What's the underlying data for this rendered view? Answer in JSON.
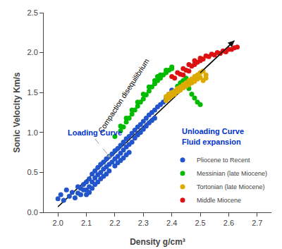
{
  "chart_data": {
    "type": "scatter",
    "title": "",
    "xlabel": "Density g/cm³",
    "ylabel": "Sonic Velocity Km/s",
    "xlim": [
      1.95,
      2.75
    ],
    "ylim": [
      0,
      2.5
    ],
    "xticks": [
      {
        "value": 2.0,
        "label": "2.0"
      },
      {
        "value": 2.1,
        "label": "2.1"
      },
      {
        "value": 2.2,
        "label": "2.2"
      },
      {
        "value": 2.3,
        "label": "2.3"
      },
      {
        "value": 2.4,
        "label": "2.4"
      },
      {
        "value": 2.5,
        "label": "2.5"
      },
      {
        "value": 2.6,
        "label": "2.6"
      },
      {
        "value": 2.7,
        "label": "2.7"
      }
    ],
    "yticks": [
      {
        "value": 0,
        "label": "0.0"
      },
      {
        "value": 0.5,
        "label": "0.5"
      },
      {
        "value": 1.0,
        "label": "1.0"
      },
      {
        "value": 1.5,
        "label": "1.5"
      },
      {
        "value": 2.0,
        "label": "2.0"
      },
      {
        "value": 2.5,
        "label": "2.5"
      }
    ],
    "grid": false,
    "legend": "lower right",
    "marker": "circle",
    "series": [
      {
        "name": "Pliocene to Recent",
        "color": "#2255cc",
        "x": [
          2.0,
          2.01,
          2.02,
          2.03,
          2.04,
          2.05,
          2.06,
          2.07,
          2.07,
          2.08,
          2.08,
          2.09,
          2.09,
          2.1,
          2.1,
          2.1,
          2.11,
          2.11,
          2.11,
          2.12,
          2.12,
          2.12,
          2.13,
          2.13,
          2.13,
          2.14,
          2.14,
          2.14,
          2.15,
          2.15,
          2.15,
          2.16,
          2.16,
          2.16,
          2.17,
          2.17,
          2.17,
          2.18,
          2.18,
          2.18,
          2.19,
          2.19,
          2.2,
          2.2,
          2.2,
          2.21,
          2.21,
          2.21,
          2.22,
          2.22,
          2.22,
          2.23,
          2.23,
          2.23,
          2.24,
          2.24,
          2.24,
          2.25,
          2.25,
          2.25,
          2.26,
          2.26,
          2.27,
          2.27,
          2.28,
          2.28,
          2.29,
          2.29,
          2.3,
          2.3,
          2.31,
          2.31,
          2.32,
          2.32,
          2.33,
          2.33,
          2.34,
          2.34,
          2.35,
          2.36,
          2.37,
          2.38,
          2.39,
          2.4
        ],
        "y": [
          0.17,
          0.22,
          0.15,
          0.28,
          0.2,
          0.25,
          0.18,
          0.32,
          0.24,
          0.3,
          0.22,
          0.35,
          0.28,
          0.38,
          0.28,
          0.22,
          0.42,
          0.32,
          0.25,
          0.48,
          0.38,
          0.3,
          0.52,
          0.43,
          0.35,
          0.56,
          0.47,
          0.38,
          0.6,
          0.5,
          0.42,
          0.63,
          0.54,
          0.45,
          0.67,
          0.57,
          0.48,
          0.7,
          0.6,
          0.52,
          0.73,
          0.63,
          0.77,
          0.67,
          0.58,
          0.8,
          0.7,
          0.62,
          0.84,
          0.74,
          0.65,
          0.88,
          0.78,
          0.68,
          0.92,
          0.82,
          0.72,
          0.95,
          0.85,
          0.75,
          0.99,
          0.88,
          1.03,
          0.93,
          1.07,
          0.97,
          1.1,
          1.0,
          1.14,
          1.04,
          1.18,
          1.08,
          1.22,
          1.12,
          1.25,
          1.15,
          1.28,
          1.18,
          1.32,
          1.35,
          1.38,
          1.42,
          1.48,
          1.53
        ]
      },
      {
        "name": "Messinian (late Miocene)",
        "color": "#00bb00",
        "x": [
          2.2,
          2.22,
          2.23,
          2.24,
          2.25,
          2.26,
          2.27,
          2.28,
          2.29,
          2.3,
          2.31,
          2.32,
          2.33,
          2.34,
          2.35,
          2.36,
          2.37,
          2.38,
          2.39,
          2.4,
          2.22,
          2.24,
          2.26,
          2.28,
          2.3,
          2.32,
          2.34,
          2.36,
          2.38,
          2.4,
          2.42,
          2.43,
          2.44,
          2.45,
          2.46,
          2.47,
          2.48,
          2.49,
          2.5,
          2.35
        ],
        "y": [
          0.95,
          1.02,
          1.07,
          1.13,
          1.18,
          1.23,
          1.28,
          1.33,
          1.38,
          1.42,
          1.47,
          1.52,
          1.57,
          1.61,
          1.65,
          1.68,
          1.72,
          1.75,
          1.78,
          1.8,
          1.08,
          1.18,
          1.28,
          1.38,
          1.48,
          1.57,
          1.65,
          1.72,
          1.78,
          1.82,
          1.58,
          1.62,
          1.65,
          1.68,
          1.55,
          1.48,
          1.43,
          1.38,
          1.35,
          1.7
        ]
      },
      {
        "name": "Tortonian (late Miocene)",
        "color": "#ddaa00",
        "x": [
          2.38,
          2.39,
          2.4,
          2.41,
          2.42,
          2.43,
          2.44,
          2.45,
          2.46,
          2.47,
          2.48,
          2.49,
          2.5,
          2.51,
          2.52,
          2.38,
          2.39,
          2.4,
          2.41,
          2.42,
          2.43,
          2.44,
          2.45,
          2.46,
          2.47,
          2.48,
          2.49,
          2.5,
          2.51,
          2.52
        ],
        "y": [
          1.45,
          1.48,
          1.5,
          1.52,
          1.55,
          1.57,
          1.6,
          1.62,
          1.65,
          1.67,
          1.7,
          1.72,
          1.75,
          1.77,
          1.72,
          1.4,
          1.43,
          1.46,
          1.48,
          1.51,
          1.53,
          1.56,
          1.58,
          1.6,
          1.62,
          1.64,
          1.67,
          1.69,
          1.65,
          1.68
        ]
      },
      {
        "name": "Middle Miocene",
        "color": "#dd1111",
        "x": [
          2.4,
          2.42,
          2.44,
          2.46,
          2.48,
          2.5,
          2.52,
          2.54,
          2.56,
          2.58,
          2.6,
          2.62,
          2.41,
          2.43,
          2.45,
          2.47,
          2.49,
          2.51,
          2.53,
          2.55,
          2.57,
          2.59,
          2.61,
          2.63,
          2.44,
          2.46,
          2.48,
          2.5
        ],
        "y": [
          1.7,
          1.75,
          1.8,
          1.85,
          1.9,
          1.93,
          1.96,
          1.98,
          2.0,
          2.02,
          2.04,
          2.06,
          1.68,
          1.73,
          1.78,
          1.83,
          1.88,
          1.92,
          1.95,
          1.97,
          1.99,
          2.01,
          2.04,
          2.07,
          1.72,
          1.77,
          1.85,
          1.9
        ]
      }
    ],
    "lines": [
      {
        "x": [
          2.0,
          2.62
        ],
        "y": [
          0.07,
          2.15
        ],
        "color": "#111111",
        "line_style": "solid",
        "marker": "arrow",
        "label": "Compaction disequilibrium",
        "label_x": 2.245,
        "label_y": 1.42,
        "label_color": "#000000"
      },
      {
        "x": [
          2.13,
          2.185
        ],
        "y": [
          0.92,
          0.68
        ],
        "color": "#999999",
        "line_style": "dashed",
        "marker": "arrow"
      }
    ],
    "annotations": [
      {
        "text": "Loading Curve",
        "x": 2.03,
        "y": 1.0,
        "color": "#0033cc"
      },
      {
        "text": "Unloading Curve",
        "x": 2.43,
        "y": 1.02,
        "color": "#0033cc"
      },
      {
        "text": "Fluid expansion",
        "x": 2.43,
        "y": 0.88,
        "color": "#0033cc"
      }
    ]
  }
}
